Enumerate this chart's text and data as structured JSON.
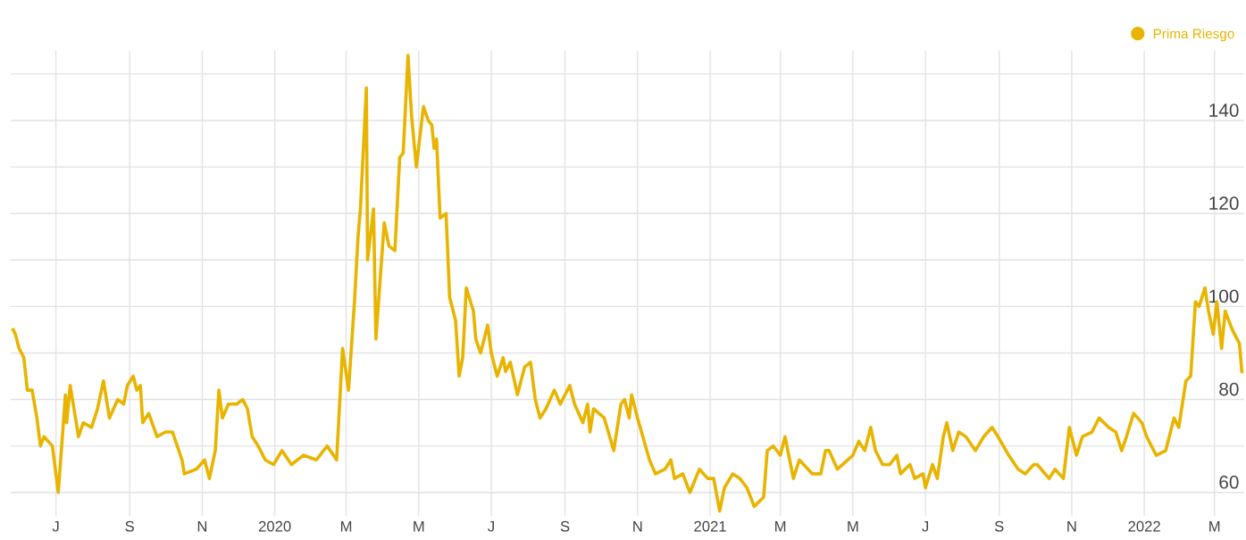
{
  "chart_data": {
    "type": "line",
    "xlim": [
      "2019-05-24",
      "2022-03-26"
    ],
    "xticks": [
      {
        "value": "2019-07-01",
        "label": "J"
      },
      {
        "value": "2019-09-01",
        "label": "S"
      },
      {
        "value": "2019-11-01",
        "label": "N"
      },
      {
        "value": "2020-01-01",
        "label": "2020"
      },
      {
        "value": "2020-03-01",
        "label": "M"
      },
      {
        "value": "2020-05-01",
        "label": "M"
      },
      {
        "value": "2020-07-01",
        "label": "J"
      },
      {
        "value": "2020-09-01",
        "label": "S"
      },
      {
        "value": "2020-11-01",
        "label": "N"
      },
      {
        "value": "2021-01-01",
        "label": "2021"
      },
      {
        "value": "2021-03-01",
        "label": "M"
      },
      {
        "value": "2021-05-01",
        "label": "M"
      },
      {
        "value": "2021-07-01",
        "label": "J"
      },
      {
        "value": "2021-09-01",
        "label": "S"
      },
      {
        "value": "2021-11-01",
        "label": "N"
      },
      {
        "value": "2022-01-01",
        "label": "2022"
      },
      {
        "value": "2022-03-01",
        "label": "M"
      }
    ],
    "ylim": [
      55,
      155
    ],
    "yticks": [
      60,
      {
        "value": 70,
        "label": null
      },
      80,
      {
        "value": 90,
        "label": null
      },
      100,
      {
        "value": 110,
        "label": null
      },
      120,
      {
        "value": 130,
        "label": null
      },
      140,
      {
        "value": 150,
        "label": null
      }
    ],
    "grid": true,
    "legend": "top right",
    "marker": "none",
    "line_style": "solid",
    "series": [
      {
        "name": "Prima Riesgo",
        "color": "#e8b400",
        "x": [
          "2019-05-26",
          "2019-05-28",
          "2019-05-31",
          "2019-06-04",
          "2019-06-07",
          "2019-06-11",
          "2019-06-15",
          "2019-06-18",
          "2019-06-21",
          "2019-06-28",
          "2019-07-03",
          "2019-07-09",
          "2019-07-10",
          "2019-07-13",
          "2019-07-20",
          "2019-07-24",
          "2019-07-31",
          "2019-08-05",
          "2019-08-10",
          "2019-08-15",
          "2019-08-22",
          "2019-08-27",
          "2019-08-30",
          "2019-09-04",
          "2019-09-07",
          "2019-09-10",
          "2019-09-12",
          "2019-09-17",
          "2019-09-24",
          "2019-10-01",
          "2019-10-07",
          "2019-10-15",
          "2019-10-17",
          "2019-10-27",
          "2019-11-03",
          "2019-11-07",
          "2019-11-12",
          "2019-11-15",
          "2019-11-18",
          "2019-11-23",
          "2019-11-30",
          "2019-12-05",
          "2019-12-09",
          "2019-12-13",
          "2019-12-18",
          "2019-12-24",
          "2019-12-31",
          "2020-01-07",
          "2020-01-15",
          "2020-01-25",
          "2020-02-05",
          "2020-02-14",
          "2020-02-22",
          "2020-02-27",
          "2020-03-03",
          "2020-03-08",
          "2020-03-11",
          "2020-03-13",
          "2020-03-18",
          "2020-03-19",
          "2020-03-24",
          "2020-03-26",
          "2020-04-02",
          "2020-04-06",
          "2020-04-11",
          "2020-04-15",
          "2020-04-18",
          "2020-04-22",
          "2020-04-25",
          "2020-04-29",
          "2020-05-05",
          "2020-05-09",
          "2020-05-12",
          "2020-05-14",
          "2020-05-16",
          "2020-05-19",
          "2020-05-24",
          "2020-05-27",
          "2020-06-01",
          "2020-06-04",
          "2020-06-07",
          "2020-06-10",
          "2020-06-16",
          "2020-06-18",
          "2020-06-22",
          "2020-06-28",
          "2020-07-01",
          "2020-07-06",
          "2020-07-11",
          "2020-07-13",
          "2020-07-17",
          "2020-07-23",
          "2020-07-29",
          "2020-08-03",
          "2020-08-07",
          "2020-08-11",
          "2020-08-16",
          "2020-08-23",
          "2020-08-28",
          "2020-09-05",
          "2020-09-09",
          "2020-09-16",
          "2020-09-20",
          "2020-09-22",
          "2020-09-25",
          "2020-10-04",
          "2020-10-12",
          "2020-10-18",
          "2020-10-21",
          "2020-10-25",
          "2020-10-27",
          "2020-11-01",
          "2020-11-11",
          "2020-11-16",
          "2020-11-24",
          "2020-11-29",
          "2020-12-02",
          "2020-12-09",
          "2020-12-15",
          "2020-12-23",
          "2020-12-30",
          "2021-01-04",
          "2021-01-09",
          "2021-01-13",
          "2021-01-20",
          "2021-01-26",
          "2021-02-01",
          "2021-02-07",
          "2021-02-15",
          "2021-02-18",
          "2021-02-23",
          "2021-03-01",
          "2021-03-05",
          "2021-03-12",
          "2021-03-17",
          "2021-03-28",
          "2021-04-04",
          "2021-04-08",
          "2021-04-11",
          "2021-04-18",
          "2021-05-01",
          "2021-05-06",
          "2021-05-11",
          "2021-05-16",
          "2021-05-20",
          "2021-05-26",
          "2021-06-01",
          "2021-06-07",
          "2021-06-10",
          "2021-06-18",
          "2021-06-22",
          "2021-06-29",
          "2021-07-01",
          "2021-07-07",
          "2021-07-11",
          "2021-07-16",
          "2021-07-19",
          "2021-07-24",
          "2021-07-29",
          "2021-08-04",
          "2021-08-12",
          "2021-08-19",
          "2021-08-26",
          "2021-08-31",
          "2021-09-09",
          "2021-09-17",
          "2021-09-23",
          "2021-09-30",
          "2021-10-03",
          "2021-10-13",
          "2021-10-18",
          "2021-10-25",
          "2021-10-30",
          "2021-11-05",
          "2021-11-10",
          "2021-11-18",
          "2021-11-24",
          "2021-12-02",
          "2021-12-08",
          "2021-12-13",
          "2021-12-17",
          "2021-12-23",
          "2021-12-30",
          "2022-01-03",
          "2022-01-11",
          "2022-01-19",
          "2022-01-26",
          "2022-01-30",
          "2022-02-05",
          "2022-02-09",
          "2022-02-13",
          "2022-02-16",
          "2022-02-21",
          "2022-02-24",
          "2022-02-28",
          "2022-03-03",
          "2022-03-07",
          "2022-03-10",
          "2022-03-16",
          "2022-03-22",
          "2022-03-24"
        ],
        "values": [
          95,
          94,
          91,
          89,
          82,
          82,
          76,
          70,
          72,
          70,
          60,
          81,
          75,
          83,
          72,
          75,
          74,
          78,
          84,
          76,
          80,
          79,
          83,
          85,
          82,
          83,
          75,
          77,
          72,
          73,
          73,
          67,
          64,
          65,
          67,
          63,
          69,
          82,
          76,
          79,
          79,
          80,
          78,
          72,
          70,
          67,
          66,
          69,
          66,
          68,
          67,
          70,
          67,
          91,
          82,
          101,
          115,
          121,
          147,
          110,
          121,
          93,
          118,
          113,
          112,
          132,
          133,
          154,
          141,
          130,
          143,
          140,
          139,
          134,
          136,
          119,
          120,
          102,
          97,
          85,
          89,
          104,
          99,
          93,
          90,
          96,
          90,
          85,
          89,
          86,
          88,
          81,
          87,
          88,
          80,
          76,
          78,
          82,
          79,
          83,
          79,
          75,
          79,
          73,
          78,
          76,
          69,
          79,
          80,
          76,
          81,
          76,
          67,
          64,
          65,
          67,
          63,
          64,
          60,
          65,
          63,
          63,
          56,
          61,
          64,
          63,
          61,
          57,
          59,
          69,
          70,
          68,
          72,
          63,
          67,
          64,
          64,
          69,
          69,
          65,
          68,
          71,
          69,
          74,
          69,
          66,
          66,
          68,
          64,
          66,
          63,
          64,
          61,
          66,
          63,
          72,
          75,
          69,
          73,
          72,
          69,
          72,
          74,
          72,
          68,
          65,
          64,
          66,
          66,
          63,
          65,
          63,
          74,
          68,
          72,
          73,
          76,
          74,
          73,
          69,
          72,
          77,
          75,
          72,
          68,
          69,
          76,
          74,
          84,
          85,
          101,
          100,
          104,
          99,
          94,
          101,
          91,
          99,
          95,
          92,
          86
        ]
      }
    ]
  }
}
